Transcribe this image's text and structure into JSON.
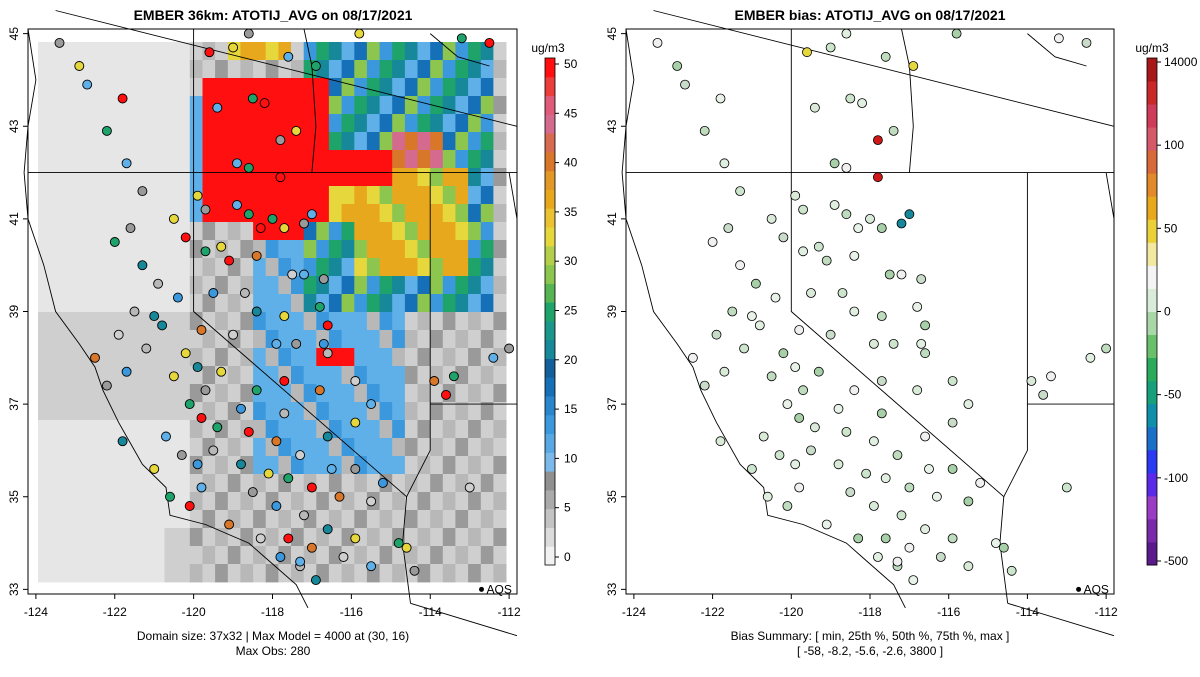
{
  "chart_data": [
    {
      "type": "heatmap",
      "title": "EMBER 36km: ATOTIJ_AVG on 08/17/2021",
      "xlim": [
        -124.2,
        -111.8
      ],
      "ylim": [
        32.9,
        45.1
      ],
      "xticks": [
        "-124",
        "-122",
        "-120",
        "-118",
        "-116",
        "-114",
        "-112"
      ],
      "yticks": [
        "33",
        "35",
        "37",
        "39",
        "41",
        "43",
        "45"
      ],
      "colorbar": {
        "units": "ug/m3",
        "ticks": [
          "0",
          "5",
          "10",
          "15",
          "20",
          "25",
          "30",
          "35",
          "40",
          "45",
          "50"
        ]
      },
      "marker_label": "AQS",
      "footer": [
        "Domain size: 37x32 | Max Model = 4000 at (30, 16)",
        "Max Obs: 280"
      ]
    },
    {
      "type": "scatter",
      "title": "EMBER bias: ATOTIJ_AVG on 08/17/2021",
      "xlim": [
        -124.2,
        -111.8
      ],
      "ylim": [
        32.9,
        45.1
      ],
      "xticks": [
        "-124",
        "-122",
        "-120",
        "-118",
        "-116",
        "-114",
        "-112"
      ],
      "yticks": [
        "33",
        "35",
        "37",
        "39",
        "41",
        "43",
        "45"
      ],
      "colorbar": {
        "units": "ug/m3",
        "ticks": [
          "14000",
          "100",
          "50",
          "0",
          "-50",
          "-100",
          "-500"
        ]
      },
      "marker_label": "AQS",
      "footer": [
        "Bias Summary: [ min, 25th %, 50th %, 75th %, max ]",
        "[ -58,   -8.2,   -5.6,   -2.6,   3800 ]"
      ]
    }
  ]
}
